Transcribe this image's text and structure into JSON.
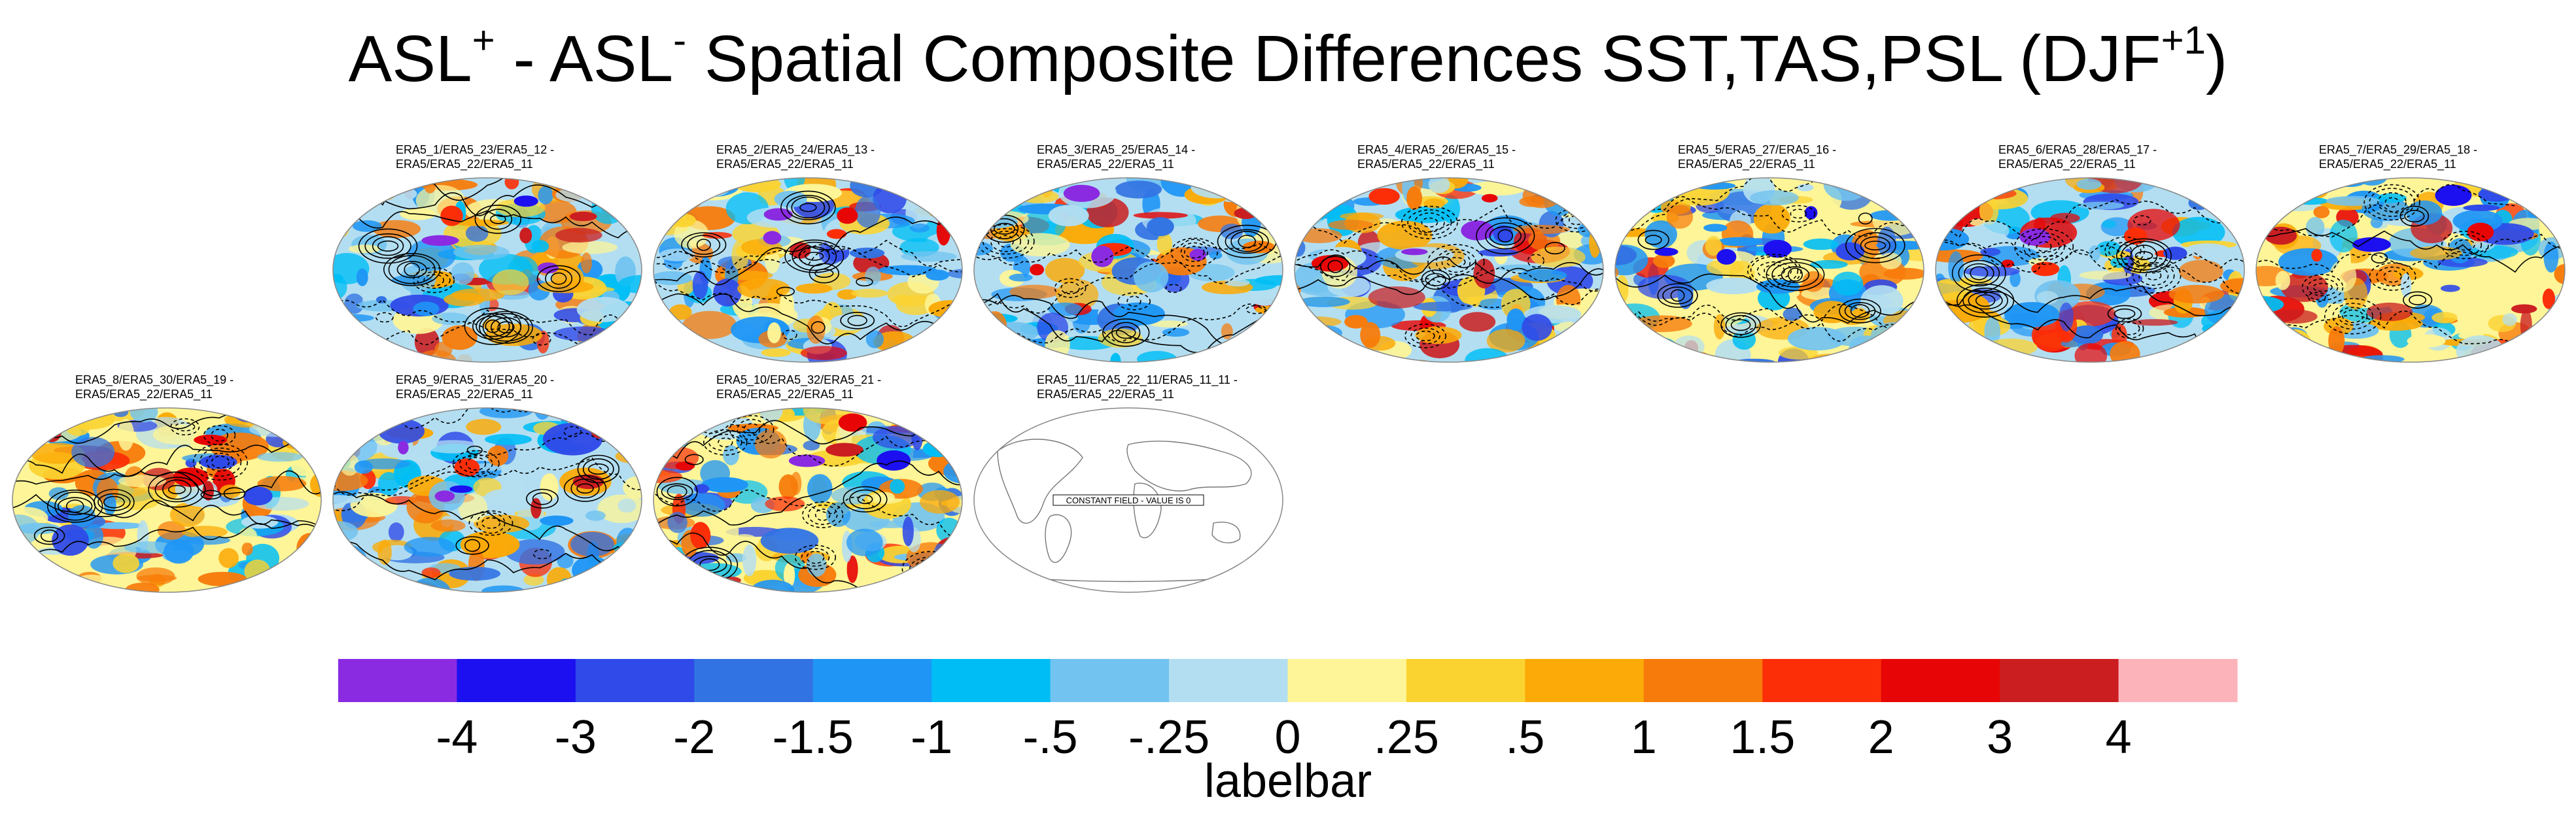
{
  "title": {
    "part1": "ASL",
    "sup1": "+",
    "part2": " - ASL",
    "sup2": "-",
    "part3": " Spatial Composite Differences SST,TAS,PSL (DJF",
    "sup3": "+1",
    "part4": ")"
  },
  "panels": [
    {
      "line1": "ERA5_1/ERA5_23/ERA5_12 -",
      "line2": "ERA5/ERA5_22/ERA5_11",
      "seed": 11,
      "constant": false
    },
    {
      "line1": "ERA5_2/ERA5_24/ERA5_13 -",
      "line2": "ERA5/ERA5_22/ERA5_11",
      "seed": 23,
      "constant": false
    },
    {
      "line1": "ERA5_3/ERA5_25/ERA5_14 -",
      "line2": "ERA5/ERA5_22/ERA5_11",
      "seed": 37,
      "constant": false
    },
    {
      "line1": "ERA5_4/ERA5_26/ERA5_15 -",
      "line2": "ERA5/ERA5_22/ERA5_11",
      "seed": 41,
      "constant": false
    },
    {
      "line1": "ERA5_5/ERA5_27/ERA5_16 -",
      "line2": "ERA5/ERA5_22/ERA5_11",
      "seed": 53,
      "constant": false
    },
    {
      "line1": "ERA5_6/ERA5_28/ERA5_17 -",
      "line2": "ERA5/ERA5_22/ERA5_11",
      "seed": 67,
      "constant": false
    },
    {
      "line1": "ERA5_7/ERA5_29/ERA5_18 -",
      "line2": "ERA5/ERA5_22/ERA5_11",
      "seed": 71,
      "constant": false
    },
    {
      "line1": "ERA5_8/ERA5_30/ERA5_19 -",
      "line2": "ERA5/ERA5_22/ERA5_11",
      "seed": 83,
      "constant": false
    },
    {
      "line1": "ERA5_9/ERA5_31/ERA5_20 -",
      "line2": "ERA5/ERA5_22/ERA5_11",
      "seed": 97,
      "constant": false
    },
    {
      "line1": "ERA5_10/ERA5_32/ERA5_21 -",
      "line2": "ERA5/ERA5_22/ERA5_11",
      "seed": 101,
      "constant": false
    },
    {
      "line1": "ERA5_11/ERA5_22_11/ERA5_11_11 -",
      "line2": "ERA5/ERA5_22/ERA5_11",
      "seed": 0,
      "constant": true,
      "constant_text": "CONSTANT FIELD - VALUE IS 0"
    }
  ],
  "chart_data": {
    "type": "heatmap",
    "title": "ASL+ - ASL- Spatial Composite Differences SST,TAS,PSL (DJF+1)",
    "variables": [
      "SST",
      "TAS",
      "PSL"
    ],
    "season": "DJF+1",
    "projection": "Robinson (global)",
    "fill_variable_levels": [
      "-4",
      "-3",
      "-2",
      "-1.5",
      "-1",
      "-.5",
      "-.25",
      "0",
      ".25",
      ".5",
      "1",
      "1.5",
      "2",
      "3",
      "4"
    ],
    "contours": "PSL (solid = positive, dashed = negative)",
    "colorbar": {
      "title": "labelbar",
      "tick_labels": [
        "-4",
        "-3",
        "-2",
        "-1.5",
        "-1",
        "-.5",
        "-.25",
        "0",
        ".25",
        ".5",
        "1",
        "1.5",
        "2",
        "3",
        "4"
      ],
      "colors": [
        "#8a2be2",
        "#1c10f0",
        "#2f4ae8",
        "#3273e3",
        "#1f96f5",
        "#00bef5",
        "#72c3f0",
        "#b3def1",
        "#fdf597",
        "#fbd331",
        "#fbaa07",
        "#f77b0a",
        "#fb2e08",
        "#e70605",
        "#cb1e21",
        "#fcb3b9"
      ]
    }
  }
}
